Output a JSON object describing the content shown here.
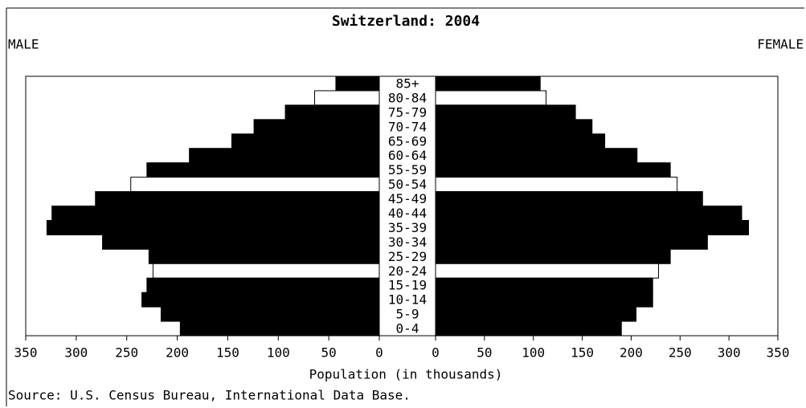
{
  "chart_data": {
    "type": "pyramid",
    "title": "Switzerland: 2004",
    "left_label": "MALE",
    "right_label": "FEMALE",
    "x_label": "Population (in thousands)",
    "source": "Source: U.S. Census Bureau, International Data Base.",
    "categories": [
      "85+",
      "80-84",
      "75-79",
      "70-74",
      "65-69",
      "60-64",
      "55-59",
      "50-54",
      "45-49",
      "40-44",
      "35-39",
      "30-34",
      "25-29",
      "20-24",
      "15-19",
      "10-14",
      "5-9",
      "0-4"
    ],
    "series": [
      {
        "name": "MALE",
        "side": "left",
        "values": [
          43,
          64,
          93,
          124,
          146,
          188,
          230,
          246,
          281,
          324,
          329,
          274,
          228,
          224,
          230,
          235,
          216,
          197
        ],
        "colors": [
          "#000",
          "#fff",
          "#000",
          "#000",
          "#000",
          "#000",
          "#000",
          "#fff",
          "#000",
          "#000",
          "#000",
          "#000",
          "#000",
          "#fff",
          "#000",
          "#000",
          "#000",
          "#000"
        ]
      },
      {
        "name": "FEMALE",
        "side": "right",
        "values": [
          107,
          113,
          143,
          160,
          173,
          206,
          240,
          247,
          273,
          313,
          320,
          278,
          240,
          228,
          222,
          222,
          205,
          190
        ],
        "colors": [
          "#000",
          "#fff",
          "#000",
          "#000",
          "#000",
          "#000",
          "#000",
          "#fff",
          "#000",
          "#000",
          "#000",
          "#000",
          "#000",
          "#fff",
          "#000",
          "#000",
          "#000",
          "#000"
        ]
      }
    ],
    "xlim": [
      0,
      350
    ],
    "xticks": [
      0,
      50,
      100,
      150,
      200,
      250,
      300,
      350
    ]
  }
}
